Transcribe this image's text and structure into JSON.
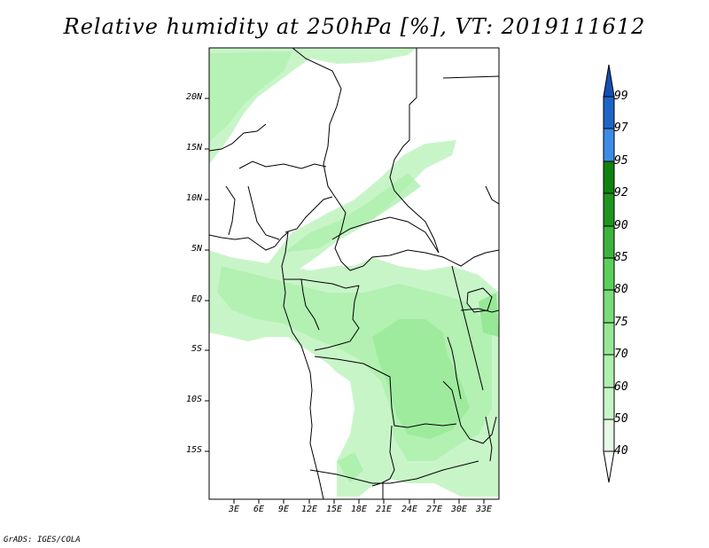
{
  "title": "Relative humidity at 250hPa [%], VT: 2019111612",
  "credit": "GrADS: IGES/COLA",
  "map": {
    "lat_labels": [
      "20N",
      "15N",
      "10N",
      "5N",
      "EQ",
      "5S",
      "10S",
      "15S"
    ],
    "lon_labels": [
      "3E",
      "6E",
      "9E",
      "12E",
      "15E",
      "18E",
      "21E",
      "24E",
      "27E",
      "30E",
      "33E"
    ]
  },
  "colorbar": {
    "levels": [
      "40",
      "50",
      "60",
      "70",
      "75",
      "80",
      "85",
      "90",
      "92",
      "95",
      "97",
      "99"
    ],
    "colors": [
      "#ffffff",
      "#e6fae6",
      "#c8f5c8",
      "#aef0ae",
      "#96e896",
      "#78dc78",
      "#5ad05a",
      "#3cb43c",
      "#1e961e",
      "#0f820f",
      "#3c8ce6",
      "#1e64c8",
      "#1450b4"
    ]
  }
}
